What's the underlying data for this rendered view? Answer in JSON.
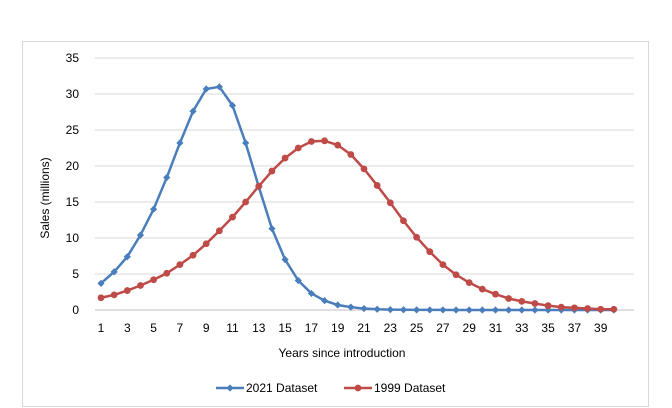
{
  "chart_data": {
    "type": "line",
    "title": "",
    "xlabel": "Years since introduction",
    "ylabel": "Sales (millions)",
    "ylim": [
      0,
      35
    ],
    "yticks": [
      0,
      5,
      10,
      15,
      20,
      25,
      30,
      35
    ],
    "xlim": [
      1,
      40
    ],
    "xtick_labels": [
      "1",
      "3",
      "5",
      "7",
      "9",
      "11",
      "13",
      "15",
      "17",
      "19",
      "21",
      "23",
      "25",
      "27",
      "29",
      "31",
      "33",
      "35",
      "37",
      "39"
    ],
    "grid": "horizontal",
    "legend_position": "bottom",
    "x": [
      1,
      2,
      3,
      4,
      5,
      6,
      7,
      8,
      9,
      10,
      11,
      12,
      13,
      14,
      15,
      16,
      17,
      18,
      19,
      20,
      21,
      22,
      23,
      24,
      25,
      26,
      27,
      28,
      29,
      30,
      31,
      32,
      33,
      34,
      35,
      36,
      37,
      38,
      39,
      40
    ],
    "series": [
      {
        "name": "2021 Dataset",
        "color": "#4a7ebb",
        "marker": "diamond",
        "values": [
          3.7,
          5.3,
          7.4,
          10.4,
          14.0,
          18.4,
          23.2,
          27.6,
          30.7,
          31.0,
          28.4,
          23.2,
          17.1,
          11.3,
          7.0,
          4.1,
          2.3,
          1.3,
          0.7,
          0.4,
          0.2,
          0.1,
          0.05,
          0.03,
          0.02,
          0.01,
          0.01,
          0,
          0,
          0,
          0,
          0,
          0,
          0,
          0,
          0,
          0,
          0,
          0,
          0
        ]
      },
      {
        "name": "1999 Dataset",
        "color": "#be4b48",
        "marker": "circle",
        "values": [
          1.7,
          2.1,
          2.7,
          3.4,
          4.2,
          5.1,
          6.3,
          7.6,
          9.2,
          11.0,
          12.9,
          15.0,
          17.2,
          19.3,
          21.1,
          22.5,
          23.4,
          23.5,
          22.9,
          21.6,
          19.6,
          17.3,
          14.9,
          12.4,
          10.1,
          8.1,
          6.3,
          4.9,
          3.8,
          2.9,
          2.2,
          1.6,
          1.2,
          0.9,
          0.6,
          0.4,
          0.3,
          0.2,
          0.1,
          0.1
        ]
      }
    ]
  }
}
